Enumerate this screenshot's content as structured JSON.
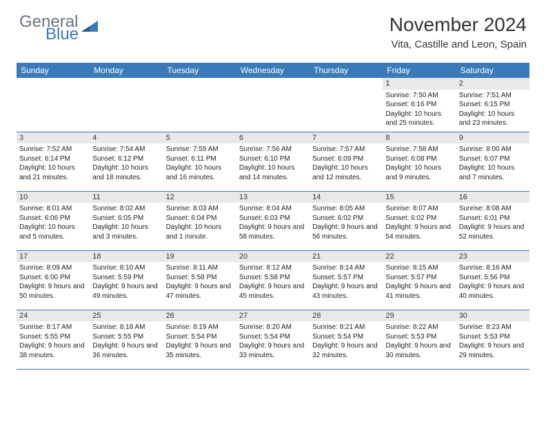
{
  "logo": {
    "gray": "General",
    "blue": "Blue"
  },
  "header": {
    "title": "November 2024",
    "location": "Vita, Castille and Leon, Spain"
  },
  "colors": {
    "accent": "#3a7ab8",
    "daybg": "#e9e9e9"
  },
  "weekdays": [
    "Sunday",
    "Monday",
    "Tuesday",
    "Wednesday",
    "Thursday",
    "Friday",
    "Saturday"
  ],
  "weeks": [
    [
      null,
      null,
      null,
      null,
      null,
      {
        "n": "1",
        "sr": "7:50 AM",
        "ss": "6:16 PM",
        "dl": "10 hours and 25 minutes."
      },
      {
        "n": "2",
        "sr": "7:51 AM",
        "ss": "6:15 PM",
        "dl": "10 hours and 23 minutes."
      }
    ],
    [
      {
        "n": "3",
        "sr": "7:52 AM",
        "ss": "6:14 PM",
        "dl": "10 hours and 21 minutes."
      },
      {
        "n": "4",
        "sr": "7:54 AM",
        "ss": "6:12 PM",
        "dl": "10 hours and 18 minutes."
      },
      {
        "n": "5",
        "sr": "7:55 AM",
        "ss": "6:11 PM",
        "dl": "10 hours and 16 minutes."
      },
      {
        "n": "6",
        "sr": "7:56 AM",
        "ss": "6:10 PM",
        "dl": "10 hours and 14 minutes."
      },
      {
        "n": "7",
        "sr": "7:57 AM",
        "ss": "6:09 PM",
        "dl": "10 hours and 12 minutes."
      },
      {
        "n": "8",
        "sr": "7:58 AM",
        "ss": "6:08 PM",
        "dl": "10 hours and 9 minutes."
      },
      {
        "n": "9",
        "sr": "8:00 AM",
        "ss": "6:07 PM",
        "dl": "10 hours and 7 minutes."
      }
    ],
    [
      {
        "n": "10",
        "sr": "8:01 AM",
        "ss": "6:06 PM",
        "dl": "10 hours and 5 minutes."
      },
      {
        "n": "11",
        "sr": "8:02 AM",
        "ss": "6:05 PM",
        "dl": "10 hours and 3 minutes."
      },
      {
        "n": "12",
        "sr": "8:03 AM",
        "ss": "6:04 PM",
        "dl": "10 hours and 1 minute."
      },
      {
        "n": "13",
        "sr": "8:04 AM",
        "ss": "6:03 PM",
        "dl": "9 hours and 58 minutes."
      },
      {
        "n": "14",
        "sr": "8:05 AM",
        "ss": "6:02 PM",
        "dl": "9 hours and 56 minutes."
      },
      {
        "n": "15",
        "sr": "8:07 AM",
        "ss": "6:02 PM",
        "dl": "9 hours and 54 minutes."
      },
      {
        "n": "16",
        "sr": "8:08 AM",
        "ss": "6:01 PM",
        "dl": "9 hours and 52 minutes."
      }
    ],
    [
      {
        "n": "17",
        "sr": "8:09 AM",
        "ss": "6:00 PM",
        "dl": "9 hours and 50 minutes."
      },
      {
        "n": "18",
        "sr": "8:10 AM",
        "ss": "5:59 PM",
        "dl": "9 hours and 49 minutes."
      },
      {
        "n": "19",
        "sr": "8:11 AM",
        "ss": "5:58 PM",
        "dl": "9 hours and 47 minutes."
      },
      {
        "n": "20",
        "sr": "8:12 AM",
        "ss": "5:58 PM",
        "dl": "9 hours and 45 minutes."
      },
      {
        "n": "21",
        "sr": "8:14 AM",
        "ss": "5:57 PM",
        "dl": "9 hours and 43 minutes."
      },
      {
        "n": "22",
        "sr": "8:15 AM",
        "ss": "5:57 PM",
        "dl": "9 hours and 41 minutes."
      },
      {
        "n": "23",
        "sr": "8:16 AM",
        "ss": "5:56 PM",
        "dl": "9 hours and 40 minutes."
      }
    ],
    [
      {
        "n": "24",
        "sr": "8:17 AM",
        "ss": "5:55 PM",
        "dl": "9 hours and 38 minutes."
      },
      {
        "n": "25",
        "sr": "8:18 AM",
        "ss": "5:55 PM",
        "dl": "9 hours and 36 minutes."
      },
      {
        "n": "26",
        "sr": "8:19 AM",
        "ss": "5:54 PM",
        "dl": "9 hours and 35 minutes."
      },
      {
        "n": "27",
        "sr": "8:20 AM",
        "ss": "5:54 PM",
        "dl": "9 hours and 33 minutes."
      },
      {
        "n": "28",
        "sr": "8:21 AM",
        "ss": "5:54 PM",
        "dl": "9 hours and 32 minutes."
      },
      {
        "n": "29",
        "sr": "8:22 AM",
        "ss": "5:53 PM",
        "dl": "9 hours and 30 minutes."
      },
      {
        "n": "30",
        "sr": "8:23 AM",
        "ss": "5:53 PM",
        "dl": "9 hours and 29 minutes."
      }
    ]
  ],
  "labels": {
    "sunrise": "Sunrise:",
    "sunset": "Sunset:",
    "daylight": "Daylight:"
  }
}
